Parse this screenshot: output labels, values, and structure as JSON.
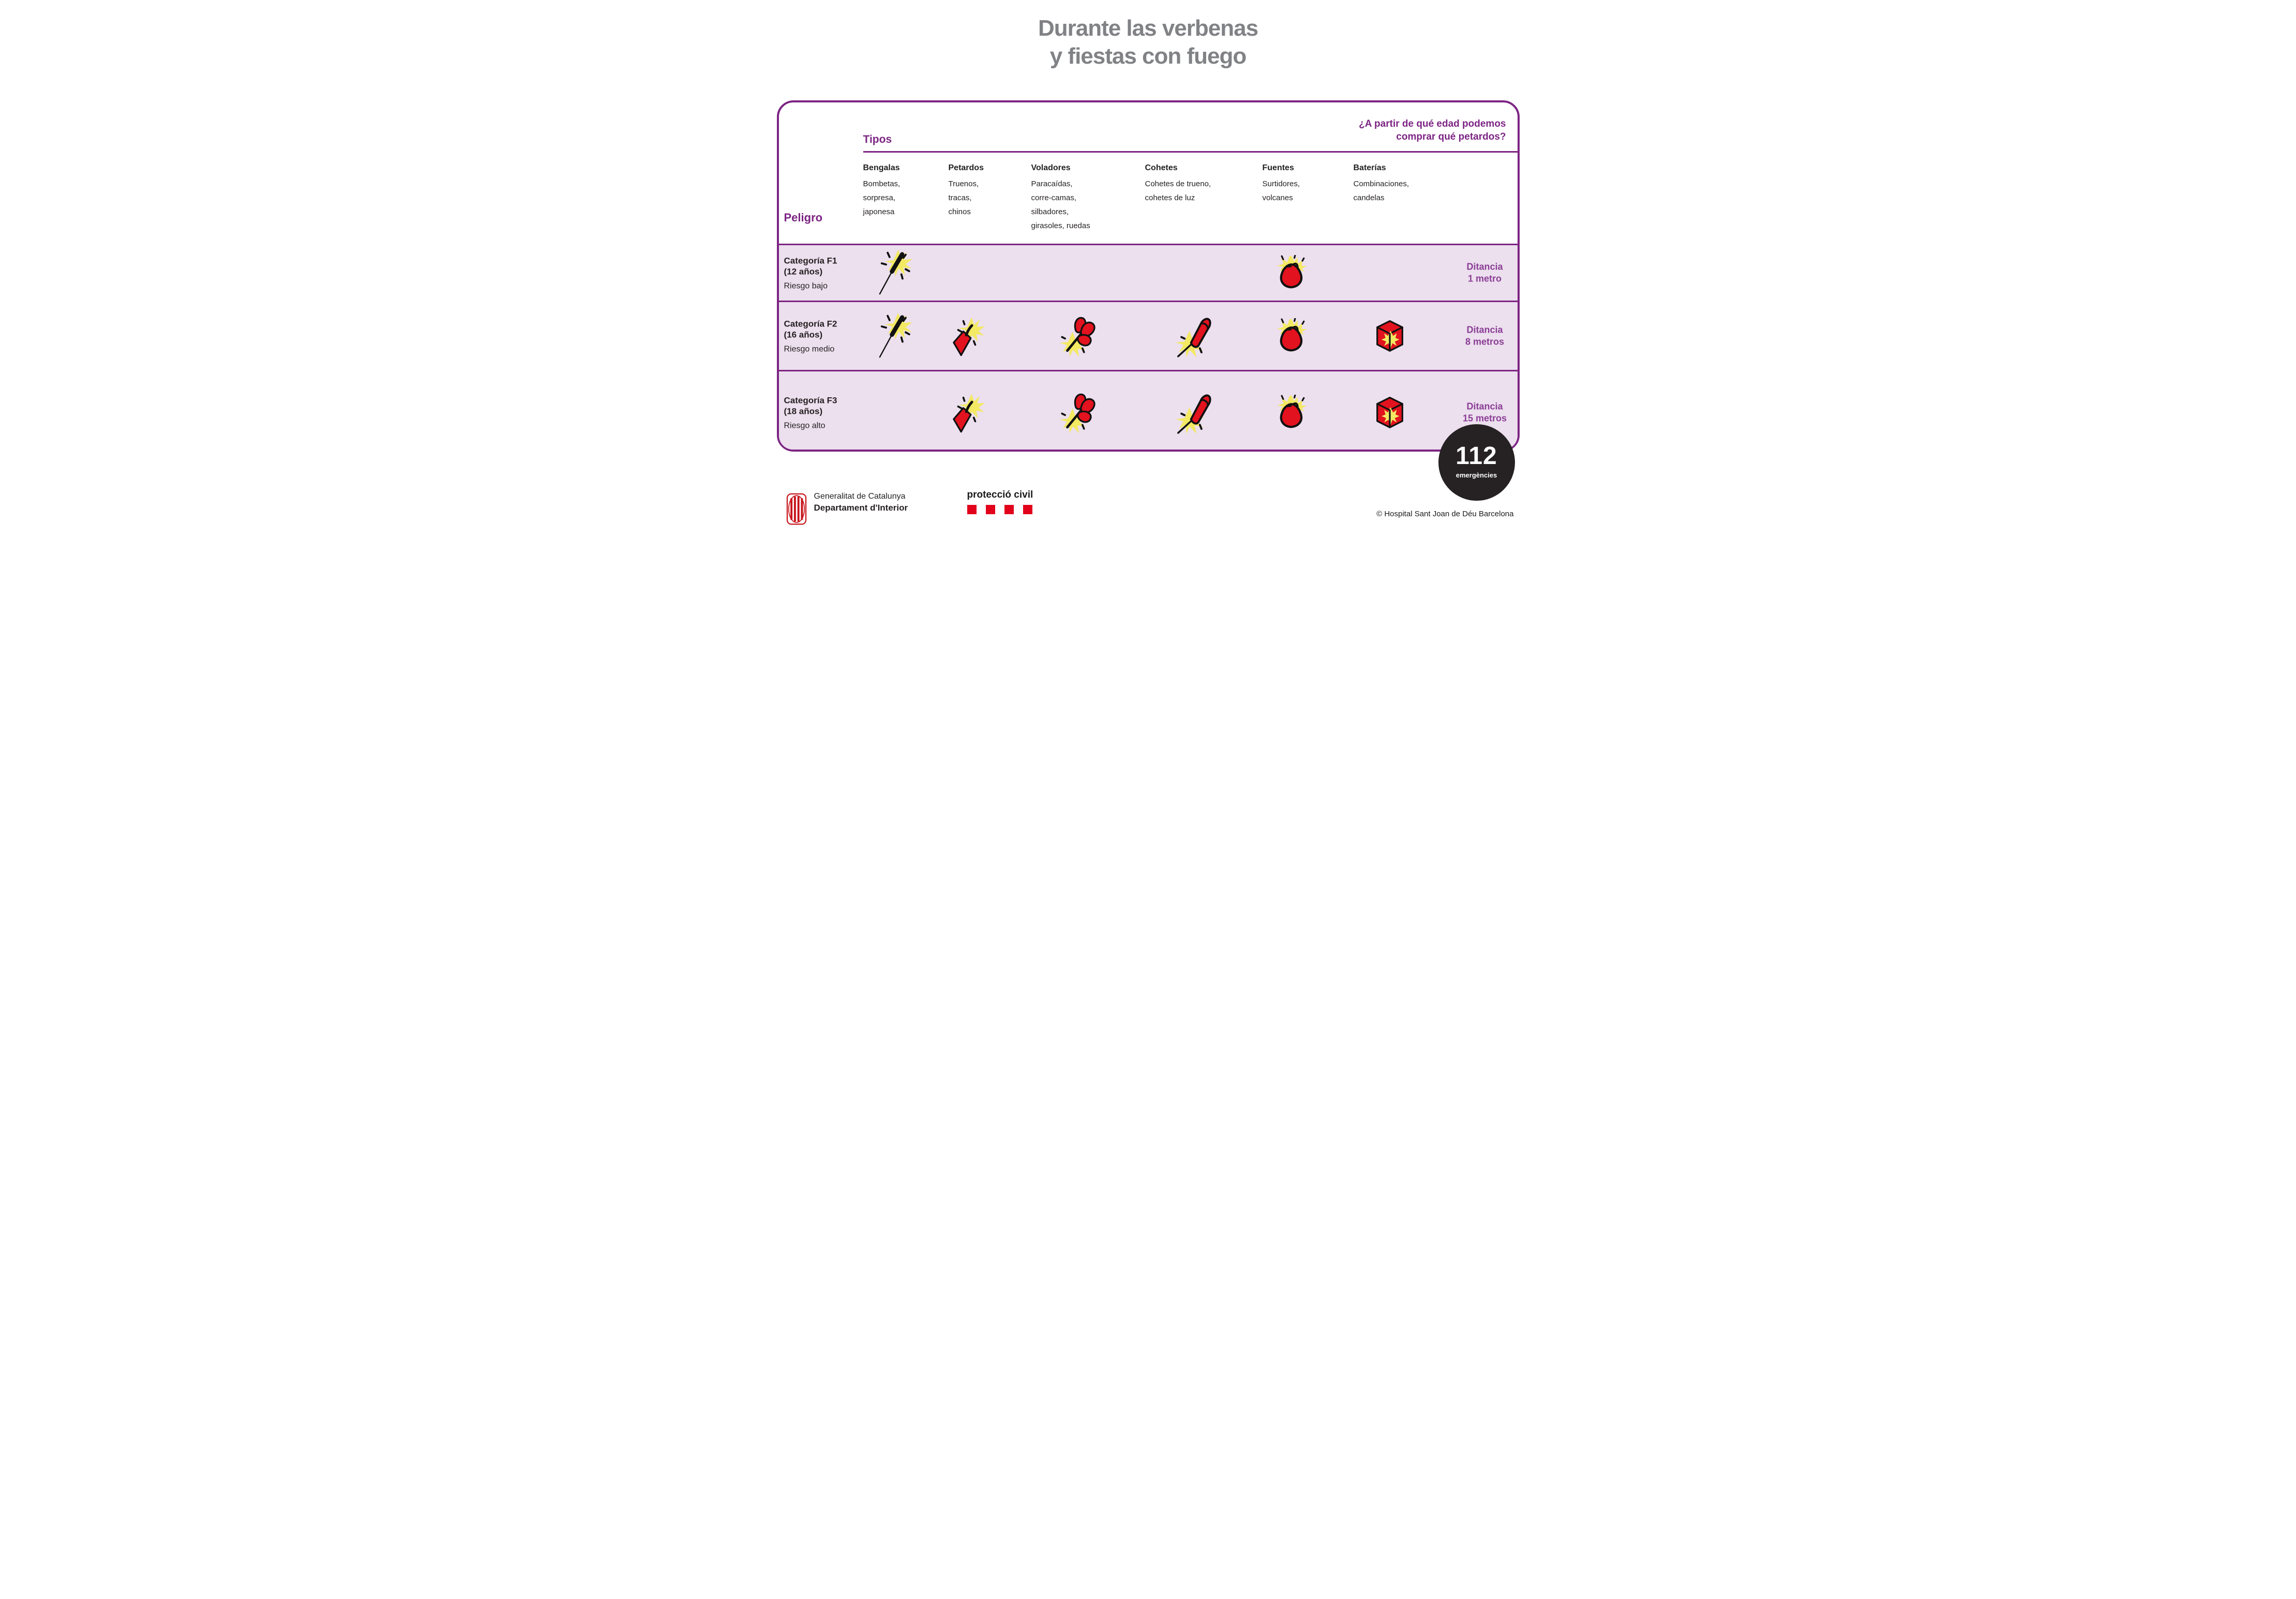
{
  "title": {
    "line1": "Durante las verbenas",
    "line2": "y fiestas con fuego"
  },
  "table": {
    "question_line1": "¿A partir de qué edad podemos",
    "question_line2": "comprar qué petardos?",
    "tipos_label": "Tipos",
    "peligro_label": "Peligro",
    "columns": [
      {
        "name": "Bengalas",
        "desc": [
          "Bombetas,",
          "sorpresa,",
          "japonesa"
        ]
      },
      {
        "name": "Petardos",
        "desc": [
          "Truenos,",
          "tracas,",
          "chinos"
        ]
      },
      {
        "name": "Voladores",
        "desc": [
          "Paracaídas,",
          "corre-camas,",
          "silbadores,",
          "girasoles, ruedas"
        ]
      },
      {
        "name": "Cohetes",
        "desc": [
          "Cohetes de trueno,",
          "cohetes de luz"
        ]
      },
      {
        "name": "Fuentes",
        "desc": [
          "Surtidores,",
          "volcanes"
        ]
      },
      {
        "name": "Baterías",
        "desc": [
          "Combinaciones,",
          "candelas"
        ]
      }
    ],
    "rows": [
      {
        "category": "Categoría F1",
        "age": "(12 años)",
        "risk": "Riesgo bajo",
        "icons": [
          "bengala",
          "fuente"
        ],
        "distance_line1": "Ditancia",
        "distance_line2": "1 metro"
      },
      {
        "category": "Categoría F2",
        "age": "(16 años)",
        "risk": "Riesgo medio",
        "icons": [
          "bengala",
          "petardo",
          "volador",
          "cohete",
          "fuente",
          "bateria"
        ],
        "distance_line1": "Ditancia",
        "distance_line2": "8 metros"
      },
      {
        "category": "Categoría F3",
        "age": "(18 años)",
        "risk": "Riesgo alto",
        "icons": [
          "petardo",
          "volador",
          "cohete",
          "fuente",
          "bateria"
        ],
        "distance_line1": "Ditancia",
        "distance_line2": "15 metros"
      }
    ]
  },
  "footer": {
    "gencat_line1": "Generalitat de Catalunya",
    "gencat_line2": "Departament d'Interior",
    "proteccio_label": "protecció civil",
    "emergency_number": "112",
    "emergency_label": "emergències",
    "copyright": "© Hospital Sant Joan de Déu Barcelona"
  },
  "colors": {
    "purple": "#7c2483",
    "purple_soft": "#8a3e95",
    "row_background": "#ecdfee",
    "icon_red": "#e2121e",
    "icon_yellow": "#f3e963",
    "title_gray": "#818285",
    "gencat_red": "#c8161d",
    "proteccio_red": "#e2001a",
    "badge_black": "#262223"
  }
}
